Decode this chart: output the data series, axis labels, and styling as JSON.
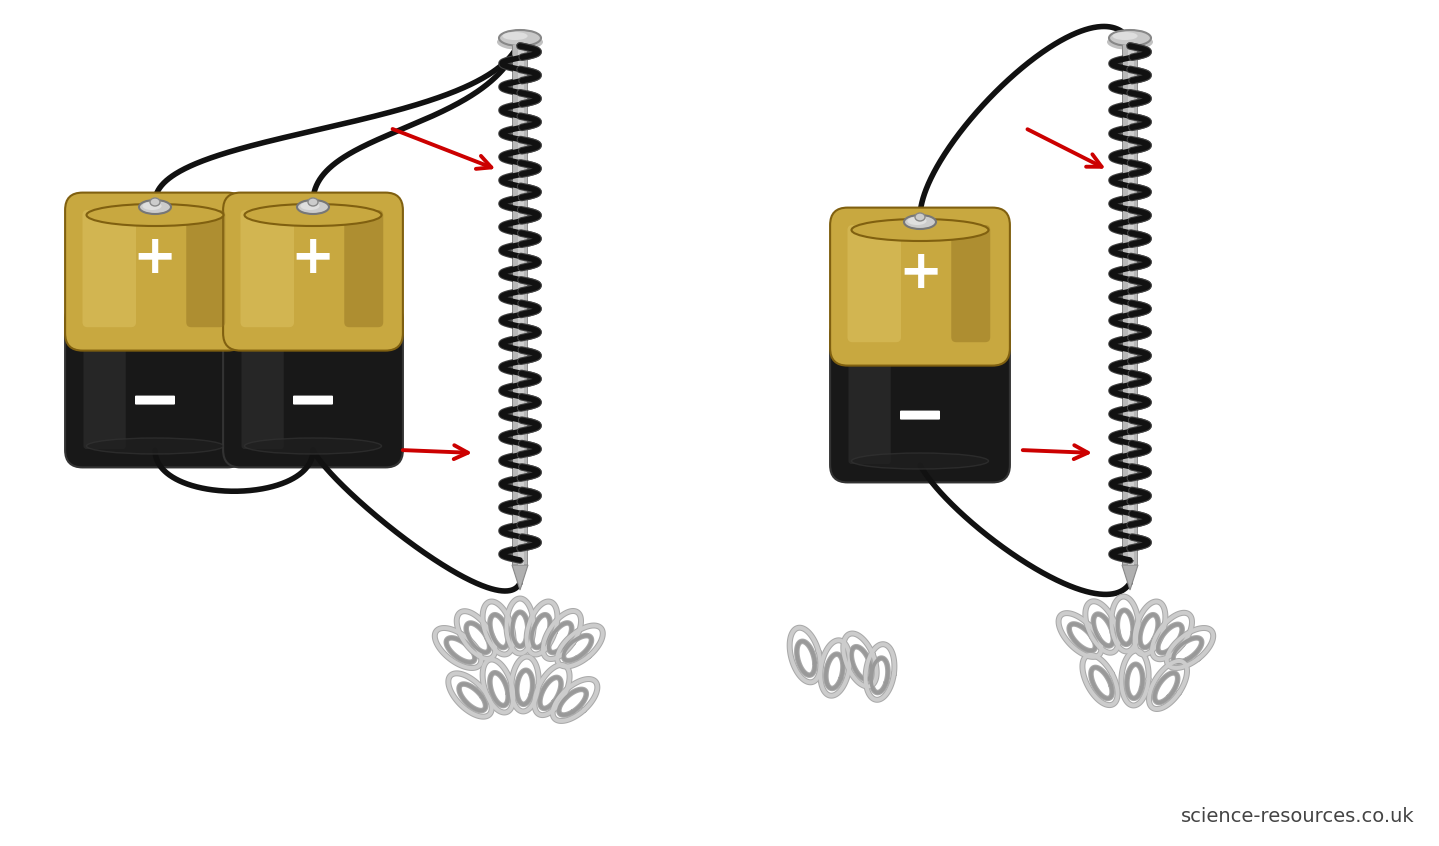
{
  "bg": "#ffffff",
  "watermark": "science-resources.co.uk",
  "wm_color": "#444444",
  "wm_fs": 14,
  "wire_color": "#111111",
  "wire_lw": 4.0,
  "coil_color": "#111111",
  "nail_light": "#d0d0d0",
  "nail_mid": "#b0b0b0",
  "nail_dark": "#888888",
  "bat_gold_top": "#c8a840",
  "bat_gold_mid": "#b89030",
  "bat_gold_light": "#dcc060",
  "bat_gold_dark": "#907020",
  "bat_black": "#181818",
  "bat_black2": "#282828",
  "bat_terminal_light": "#cccccc",
  "bat_terminal_dark": "#888888",
  "plus_color": "#ffffff",
  "minus_color": "#ffffff",
  "arrow_color": "#cc0000",
  "clip_color": "#cccccc",
  "clip_dark": "#999999",
  "clip_lw": 2.8
}
